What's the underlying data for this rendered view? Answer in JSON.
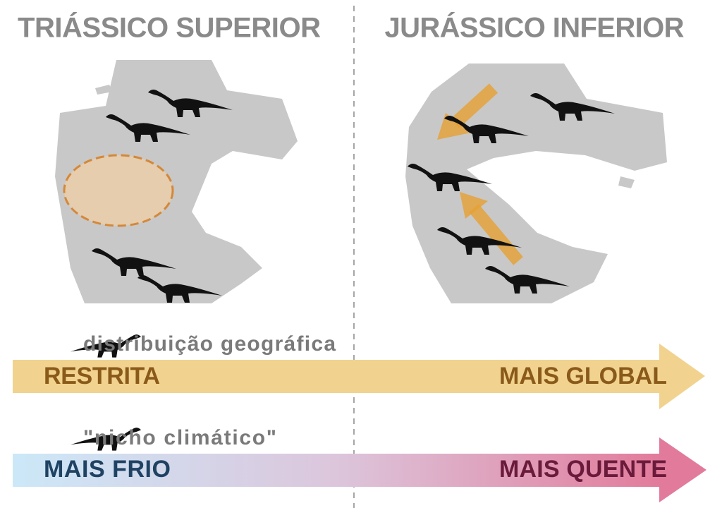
{
  "panels": [
    {
      "title": "TRIÁSSICO SUPERIOR"
    },
    {
      "title": "JURÁSSICO INFERIOR"
    }
  ],
  "scales": [
    {
      "label": "distribuição geográfica",
      "left": "RESTRITA",
      "right": "MAIS GLOBAL"
    },
    {
      "label": "\"nicho climático\"",
      "left": "MAIS FRIO",
      "right": "MAIS QUENTE"
    }
  ]
}
